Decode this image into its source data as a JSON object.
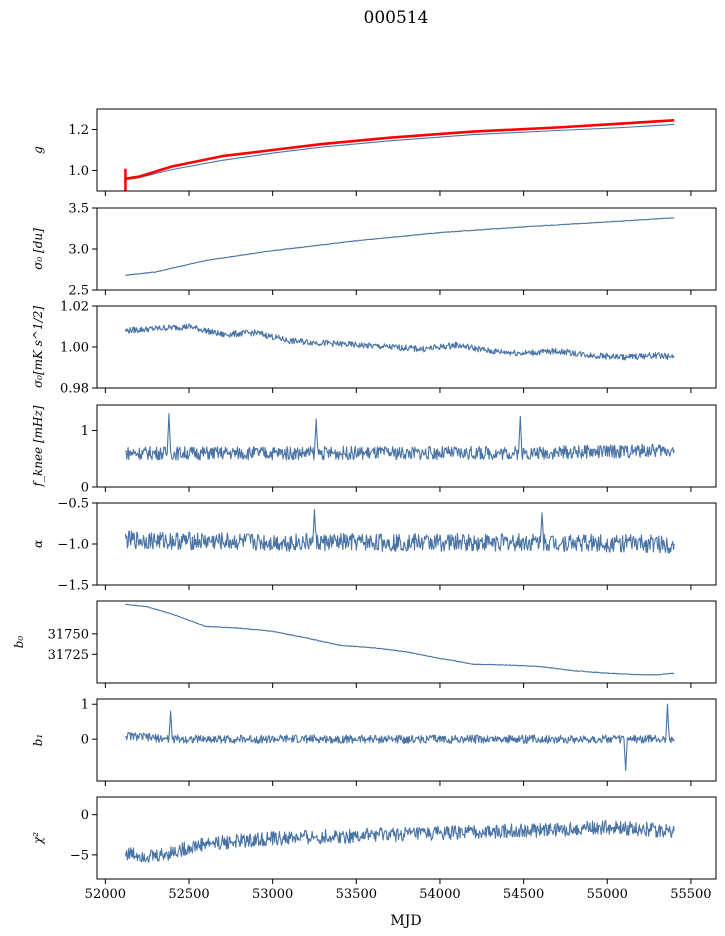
{
  "figure": {
    "title": "000514",
    "xlabel": "MJD"
  },
  "colors": {
    "series": "#4a74a6",
    "fit": "#ff0000",
    "axes": "#000000"
  },
  "chart_data": [
    {
      "type": "line",
      "id": "g",
      "ylabel": "g",
      "xlim": [
        51950,
        55650
      ],
      "ylim": [
        0.9,
        1.3
      ],
      "yticks": [
        1.0,
        1.2
      ],
      "ytick_labels": [
        "1.0",
        "1.2"
      ],
      "series": [
        {
          "x": [
            52120,
            52200,
            52400,
            52700,
            53000,
            53300,
            53700,
            54200,
            54700,
            55100,
            55400
          ],
          "values": [
            0.955,
            0.965,
            1.005,
            1.05,
            1.085,
            1.115,
            1.145,
            1.175,
            1.195,
            1.21,
            1.225
          ],
          "color": "#4a74a6"
        },
        {
          "x": [
            52120,
            52200,
            52400,
            52700,
            53000,
            53300,
            53700,
            54200,
            54700,
            55100,
            55400
          ],
          "values": [
            0.96,
            0.97,
            1.02,
            1.07,
            1.1,
            1.13,
            1.16,
            1.19,
            1.21,
            1.23,
            1.245
          ],
          "color": "#ff0000"
        }
      ]
    },
    {
      "type": "line",
      "id": "sigma0",
      "ylabel": "σ₀ [du]",
      "xlim": [
        51950,
        55650
      ],
      "ylim": [
        2.5,
        3.5
      ],
      "yticks": [
        2.5,
        3.0,
        3.5
      ],
      "ytick_labels": [
        "2.5",
        "3.0",
        "3.5"
      ],
      "series": [
        {
          "x": [
            52120,
            52300,
            52600,
            53000,
            53500,
            54000,
            54500,
            55000,
            55400
          ],
          "values": [
            2.68,
            2.72,
            2.86,
            2.98,
            3.1,
            3.2,
            3.27,
            3.33,
            3.38
          ],
          "color": "#4a74a6"
        }
      ]
    },
    {
      "type": "line",
      "id": "sigma0_mks",
      "ylabel": "σ₀[mK s^1/2]",
      "xlim": [
        51950,
        55650
      ],
      "ylim": [
        0.98,
        1.02
      ],
      "yticks": [
        0.98,
        1.0,
        1.02
      ],
      "ytick_labels": [
        "0.98",
        "1.00",
        "1.02"
      ],
      "series": [
        {
          "x": [
            52120,
            52300,
            52500,
            52700,
            52900,
            53100,
            53300,
            53500,
            53700,
            53900,
            54100,
            54300,
            54500,
            54700,
            54900,
            55100,
            55300,
            55400
          ],
          "values": [
            1.008,
            1.009,
            1.01,
            1.006,
            1.007,
            1.003,
            1.002,
            1.001,
            1.0,
            0.999,
            1.001,
            0.998,
            0.997,
            0.998,
            0.996,
            0.995,
            0.996,
            0.995
          ],
          "color": "#4a74a6"
        }
      ]
    },
    {
      "type": "line",
      "id": "fknee",
      "ylabel": "f_knee [mHz]",
      "xlim": [
        51950,
        55650
      ],
      "ylim": [
        0,
        1.45
      ],
      "yticks": [
        0,
        1
      ],
      "ytick_labels": [
        "0",
        "1"
      ],
      "series": [
        {
          "x": [
            52120,
            52370,
            52380,
            52390,
            53250,
            53260,
            53270,
            54470,
            54480,
            54490,
            55400
          ],
          "values": [
            0.6,
            0.6,
            1.3,
            0.6,
            0.6,
            1.2,
            0.6,
            0.6,
            1.25,
            0.6,
            0.65
          ],
          "color": "#4a74a6"
        }
      ]
    },
    {
      "type": "line",
      "id": "alpha",
      "ylabel": "α",
      "xlim": [
        51950,
        55650
      ],
      "ylim": [
        -1.5,
        -0.5
      ],
      "yticks": [
        -1.5,
        -1.0,
        -0.5
      ],
      "ytick_labels": [
        "−1.5",
        "−1.0",
        "−0.5"
      ],
      "series": [
        {
          "x": [
            52120,
            53000,
            53240,
            53250,
            53260,
            54600,
            54610,
            54620,
            55400
          ],
          "values": [
            -0.95,
            -0.98,
            -0.98,
            -0.58,
            -0.98,
            -0.98,
            -0.62,
            -0.98,
            -1.0
          ],
          "color": "#4a74a6"
        }
      ]
    },
    {
      "type": "line",
      "id": "b0",
      "ylabel": "b₀",
      "xlim": [
        51950,
        55650
      ],
      "ylim": [
        31690,
        31790
      ],
      "yticks": [
        31725,
        31750
      ],
      "ytick_labels": [
        "31725",
        "31750"
      ],
      "series": [
        {
          "x": [
            52120,
            52250,
            52400,
            52600,
            52800,
            53000,
            53200,
            53400,
            53600,
            53800,
            54000,
            54200,
            54400,
            54600,
            54800,
            55000,
            55200,
            55300,
            55400
          ],
          "values": [
            31786,
            31783,
            31774,
            31759,
            31757,
            31753,
            31745,
            31736,
            31733,
            31728,
            31720,
            31713,
            31712,
            31710,
            31705,
            31702,
            31700,
            31700,
            31702
          ],
          "color": "#4a74a6"
        }
      ]
    },
    {
      "type": "line",
      "id": "b1",
      "ylabel": "b₁",
      "xlim": [
        51950,
        55650
      ],
      "ylim": [
        -1.2,
        1.15
      ],
      "yticks": [
        0,
        1
      ],
      "ytick_labels": [
        "0",
        "1"
      ],
      "series": [
        {
          "x": [
            52120,
            52380,
            52390,
            52400,
            54000,
            55100,
            55110,
            55120,
            55350,
            55360,
            55370,
            55400
          ],
          "values": [
            0.1,
            0.0,
            0.8,
            0.0,
            0.0,
            0.0,
            -0.9,
            0.0,
            0.0,
            1.0,
            0.0,
            -0.05
          ],
          "color": "#4a74a6"
        }
      ]
    },
    {
      "type": "line",
      "id": "chi2",
      "ylabel": "χ²",
      "xlim": [
        51950,
        55650
      ],
      "ylim": [
        -8,
        2.2
      ],
      "yticks": [
        -5,
        0
      ],
      "ytick_labels": [
        "−5",
        "0"
      ],
      "series": [
        {
          "x": [
            52120,
            52300,
            52600,
            53000,
            53500,
            54000,
            54500,
            55000,
            55400
          ],
          "values": [
            -4.8,
            -5.2,
            -3.6,
            -3.0,
            -2.6,
            -2.3,
            -2.0,
            -1.6,
            -2.0
          ],
          "color": "#4a74a6"
        }
      ]
    }
  ],
  "shared_x": {
    "ticks": [
      52000,
      52500,
      53000,
      53500,
      54000,
      54500,
      55000,
      55500
    ],
    "tick_labels": [
      "52000",
      "52500",
      "53000",
      "53500",
      "54000",
      "54500",
      "55000",
      "55500"
    ]
  }
}
